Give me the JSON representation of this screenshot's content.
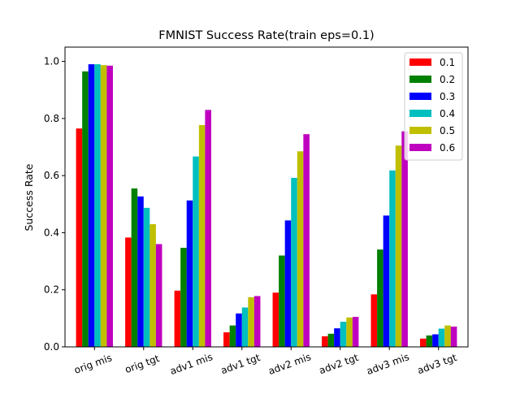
{
  "chart_data": {
    "type": "bar",
    "title": "FMNIST Success Rate(train eps=0.1)",
    "xlabel": "",
    "ylabel": "Success Rate",
    "ylim": [
      0,
      1.05
    ],
    "yticks": [
      "0.0",
      "0.2",
      "0.4",
      "0.6",
      "0.8",
      "1.0"
    ],
    "categories": [
      "orig mis",
      "orig tgt",
      "adv1 mis",
      "adv1 tgt",
      "adv2 mis",
      "adv2 tgt",
      "adv3 mis",
      "adv3 tgt"
    ],
    "legend_position": "top-right",
    "grid": false,
    "series": [
      {
        "name": "0.1",
        "color": "#ff0000",
        "values": [
          0.765,
          0.383,
          0.197,
          0.051,
          0.19,
          0.037,
          0.184,
          0.029
        ]
      },
      {
        "name": "0.2",
        "color": "#008000",
        "values": [
          0.965,
          0.555,
          0.347,
          0.075,
          0.32,
          0.046,
          0.341,
          0.04
        ]
      },
      {
        "name": "0.3",
        "color": "#0000ff",
        "values": [
          0.99,
          0.527,
          0.513,
          0.117,
          0.443,
          0.065,
          0.46,
          0.044
        ]
      },
      {
        "name": "0.4",
        "color": "#00bfbf",
        "values": [
          0.99,
          0.487,
          0.667,
          0.138,
          0.592,
          0.088,
          0.618,
          0.064
        ]
      },
      {
        "name": "0.5",
        "color": "#bfbf00",
        "values": [
          0.987,
          0.43,
          0.777,
          0.174,
          0.685,
          0.103,
          0.705,
          0.075
        ]
      },
      {
        "name": "0.6",
        "color": "#bf00bf",
        "values": [
          0.985,
          0.36,
          0.83,
          0.178,
          0.745,
          0.105,
          0.755,
          0.071
        ]
      }
    ]
  }
}
